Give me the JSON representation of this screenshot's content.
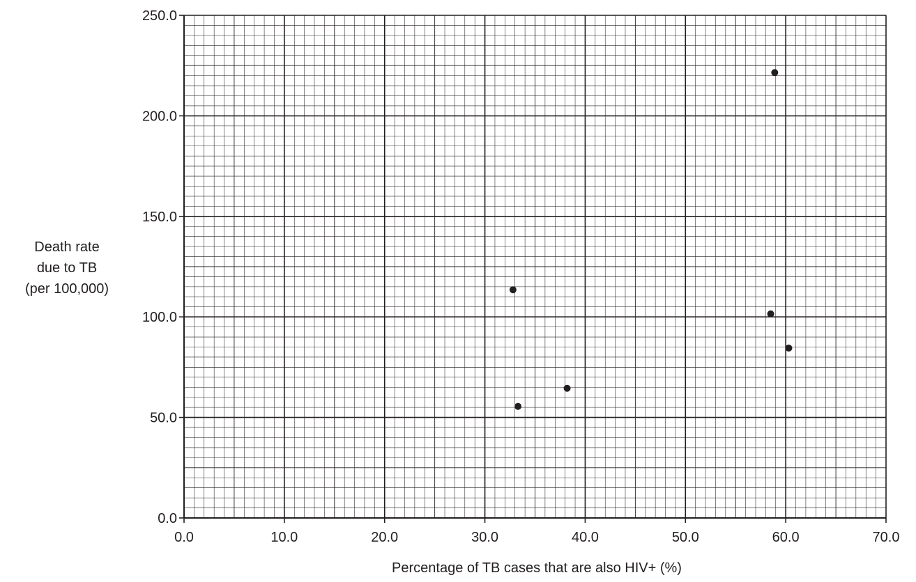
{
  "chart_data": {
    "type": "scatter",
    "title": "",
    "xlabel": "Percentage of TB cases that are also HIV+ (%)",
    "ylabel_lines": [
      "Death rate",
      "due to TB",
      "(per 100,000)"
    ],
    "xlim": [
      0,
      70
    ],
    "ylim": [
      0,
      250
    ],
    "x_ticks": [
      0,
      10,
      20,
      30,
      40,
      50,
      60,
      70
    ],
    "y_ticks": [
      0,
      50,
      100,
      150,
      200,
      250
    ],
    "x_tick_labels": [
      "0.0",
      "10.0",
      "20.0",
      "30.0",
      "40.0",
      "50.0",
      "60.0",
      "70.0"
    ],
    "y_tick_labels": [
      "0.0",
      "50.0",
      "100.0",
      "150.0",
      "200.0",
      "250.0"
    ],
    "grid": true,
    "grid_minor_x_step": 1,
    "grid_minor_y_step": 5,
    "points": [
      {
        "x": 32.8,
        "y": 113.5
      },
      {
        "x": 33.3,
        "y": 55.5
      },
      {
        "x": 38.2,
        "y": 64.5
      },
      {
        "x": 58.5,
        "y": 101.5
      },
      {
        "x": 58.9,
        "y": 221.5
      },
      {
        "x": 60.3,
        "y": 84.5
      }
    ],
    "colors": {
      "grid": "#231f20",
      "axis": "#231f20",
      "marker": "#231f20",
      "text": "#231f20"
    }
  }
}
